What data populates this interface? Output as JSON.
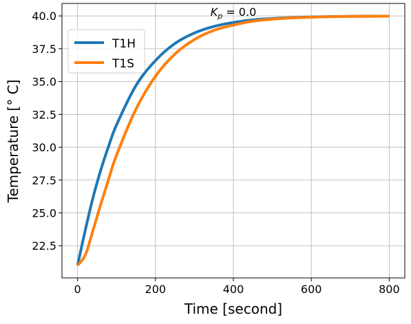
{
  "chart_data": {
    "type": "line",
    "title": "K_p = 0.0",
    "title_parts": {
      "symbol": "K",
      "subscript": "p",
      "rest": " = 0.0"
    },
    "xlabel": "Time [second]",
    "ylabel": "Temperature [° C]",
    "xlim": [
      -40,
      840
    ],
    "ylim": [
      20.05,
      40.95
    ],
    "xticks": [
      0,
      200,
      400,
      600,
      800
    ],
    "xtick_labels": [
      "0",
      "200",
      "400",
      "600",
      "800"
    ],
    "yticks": [
      22.5,
      25.0,
      27.5,
      30.0,
      32.5,
      35.0,
      37.5,
      40.0
    ],
    "ytick_labels": [
      "22.5",
      "25.0",
      "27.5",
      "30.0",
      "32.5",
      "35.0",
      "37.5",
      "40.0"
    ],
    "grid": true,
    "legend_position": "top-left",
    "x": [
      0,
      20,
      40,
      60,
      80,
      100,
      150,
      200,
      250,
      300,
      350,
      400,
      450,
      500,
      550,
      600,
      650,
      700,
      750,
      800
    ],
    "series": [
      {
        "name": "T1H",
        "color": "#1f77b4",
        "values": [
          21.0,
          23.7,
          26.2,
          28.3,
          30.1,
          31.7,
          34.7,
          36.6,
          37.9,
          38.7,
          39.2,
          39.5,
          39.7,
          39.8,
          39.87,
          39.92,
          39.95,
          39.97,
          39.98,
          39.98
        ]
      },
      {
        "name": "T1S",
        "color": "#ff7f0e",
        "values": [
          21.0,
          21.8,
          23.7,
          25.7,
          27.6,
          29.4,
          32.9,
          35.4,
          37.1,
          38.2,
          38.9,
          39.3,
          39.6,
          39.75,
          39.85,
          39.9,
          39.94,
          39.96,
          39.97,
          39.98
        ]
      }
    ]
  }
}
